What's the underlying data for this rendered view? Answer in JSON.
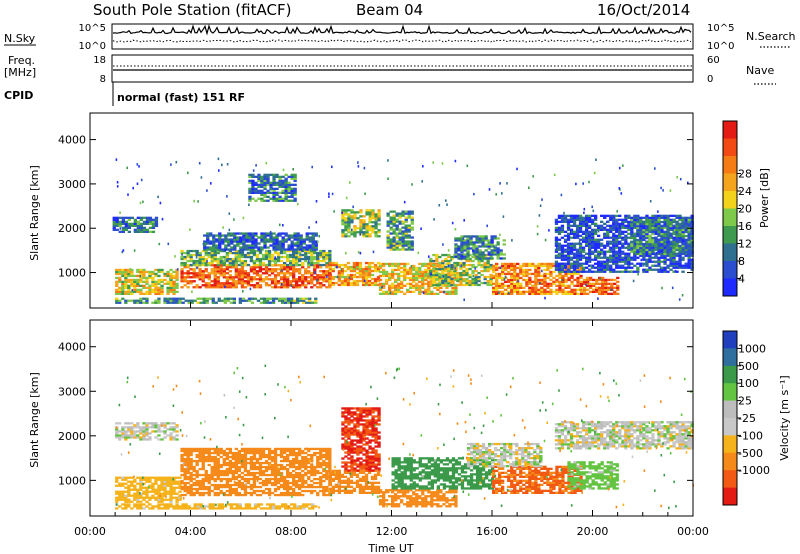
{
  "header": {
    "title": "South Pole Station (fitACF)",
    "beam": "Beam 04",
    "date": "16/Oct/2014"
  },
  "sky_panel": {
    "left_label": "N.Sky",
    "right_label": "N.Search",
    "left_ticks": [
      "10^5",
      "10^0"
    ],
    "right_ticks": [
      "10^5",
      "10^0"
    ],
    "right_style": "dotted"
  },
  "freq_panel": {
    "left_label_line1": "Freq.",
    "left_label_line2": "[MHz]",
    "right_label": "Nave",
    "left_ticks": [
      18,
      8
    ],
    "right_ticks": [
      60,
      0
    ],
    "right_style": "dotted"
  },
  "cpid": {
    "label": "CPID",
    "value": "normal (fast) 151 RF"
  },
  "chart_data": [
    {
      "type": "heatmap",
      "quantity": "power",
      "ylabel": "Slant Range [km]",
      "yticks": [
        1000,
        2000,
        3000,
        4000
      ],
      "ylim": [
        200,
        4600
      ],
      "x_range_hours": [
        0,
        24
      ],
      "colorbar": {
        "label": "Power [dB]",
        "ticks": [
          "4",
          "8",
          "12",
          "16",
          "20",
          "24",
          "28"
        ],
        "colors": [
          "#1f2aff",
          "#2a4ecf",
          "#2f6f90",
          "#3e9a4e",
          "#7ec84a",
          "#f2d21a",
          "#f5a41d",
          "#f57b14",
          "#f24a12",
          "#e41a14"
        ]
      },
      "regions": [
        {
          "x0": 1.0,
          "x1": 3.5,
          "y0": 500,
          "y1": 1050,
          "v": 18
        },
        {
          "x0": 0.9,
          "x1": 2.6,
          "y0": 1900,
          "y1": 2250,
          "v": 9
        },
        {
          "x0": 3.6,
          "x1": 9.5,
          "y0": 650,
          "y1": 1150,
          "v": 26
        },
        {
          "x0": 3.6,
          "x1": 9.5,
          "y0": 1150,
          "y1": 1500,
          "v": 14
        },
        {
          "x0": 4.5,
          "x1": 9.0,
          "y0": 1500,
          "y1": 1900,
          "v": 8
        },
        {
          "x0": 6.3,
          "x1": 8.2,
          "y0": 2600,
          "y1": 3200,
          "v": 10
        },
        {
          "x0": 9.5,
          "x1": 11.5,
          "y0": 700,
          "y1": 1200,
          "v": 22
        },
        {
          "x0": 10.0,
          "x1": 11.5,
          "y0": 1800,
          "y1": 2400,
          "v": 16
        },
        {
          "x0": 11.5,
          "x1": 14.5,
          "y0": 500,
          "y1": 1200,
          "v": 20
        },
        {
          "x0": 11.8,
          "x1": 12.8,
          "y0": 1500,
          "y1": 2400,
          "v": 12
        },
        {
          "x0": 13.5,
          "x1": 16.0,
          "y0": 700,
          "y1": 1400,
          "v": 16
        },
        {
          "x0": 14.5,
          "x1": 16.5,
          "y0": 1300,
          "y1": 1800,
          "v": 10
        },
        {
          "x0": 16.0,
          "x1": 19.5,
          "y0": 500,
          "y1": 1200,
          "v": 24
        },
        {
          "x0": 19.5,
          "x1": 21.0,
          "y0": 500,
          "y1": 900,
          "v": 26
        },
        {
          "x0": 18.5,
          "x1": 24.0,
          "y0": 1000,
          "y1": 2300,
          "v": 6
        },
        {
          "x0": 21.5,
          "x1": 24.0,
          "y0": 1400,
          "y1": 2200,
          "v": 10
        },
        {
          "x0": 1.0,
          "x1": 9.0,
          "y0": 300,
          "y1": 420,
          "v": 12
        }
      ]
    },
    {
      "type": "heatmap",
      "quantity": "velocity",
      "ylabel": "Slant Range [km]",
      "yticks": [
        1000,
        2000,
        3000,
        4000
      ],
      "ylim": [
        200,
        4600
      ],
      "x_range_hours": [
        0,
        24
      ],
      "xticks": [
        "00:00",
        "04:00",
        "08:00",
        "12:00",
        "16:00",
        "20:00",
        "00:00"
      ],
      "xlabel": "Time UT",
      "colorbar": {
        "label": "Velocity [m s⁻¹]",
        "ticks": [
          "1000",
          "500",
          "100",
          "25",
          "-25",
          "-100",
          "-500",
          "-1000"
        ],
        "colors": [
          "#1f3fbf",
          "#2e6fa0",
          "#3a9a4a",
          "#62c440",
          "#bdbdbd",
          "#c8c8c8",
          "#f5b21a",
          "#f58a1a",
          "#f25a14",
          "#e41a14"
        ]
      },
      "regions": [
        {
          "x0": 1.0,
          "x1": 3.5,
          "y0": 1900,
          "y1": 2300,
          "v": 0
        },
        {
          "x0": 1.0,
          "x1": 3.6,
          "y0": 500,
          "y1": 1050,
          "v": -60
        },
        {
          "x0": 3.6,
          "x1": 9.5,
          "y0": 650,
          "y1": 1700,
          "v": -300
        },
        {
          "x0": 9.5,
          "x1": 11.5,
          "y0": 700,
          "y1": 1200,
          "v": -300
        },
        {
          "x0": 10.0,
          "x1": 11.5,
          "y0": 1200,
          "y1": 2600,
          "v": -1000
        },
        {
          "x0": 11.5,
          "x1": 14.5,
          "y0": 400,
          "y1": 800,
          "v": -300
        },
        {
          "x0": 12.0,
          "x1": 16.0,
          "y0": 800,
          "y1": 1500,
          "v": 200
        },
        {
          "x0": 16.0,
          "x1": 19.5,
          "y0": 700,
          "y1": 1300,
          "v": -600
        },
        {
          "x0": 19.0,
          "x1": 21.0,
          "y0": 800,
          "y1": 1400,
          "v": 60
        },
        {
          "x0": 18.5,
          "x1": 24.0,
          "y0": 1700,
          "y1": 2300,
          "v": 0
        },
        {
          "x0": 15.0,
          "x1": 18.0,
          "y0": 1300,
          "y1": 1800,
          "v": 0
        },
        {
          "x0": 1.0,
          "x1": 9.0,
          "y0": 350,
          "y1": 480,
          "v": -60
        }
      ]
    }
  ]
}
